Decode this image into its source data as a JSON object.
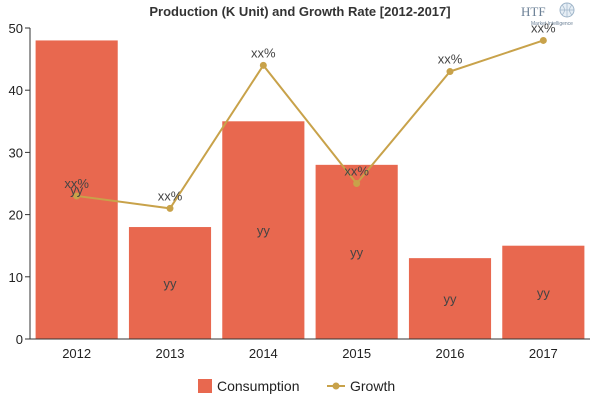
{
  "chart_data": {
    "type": "bar",
    "title": "Production (K Unit) and Growth Rate [2012-2017]",
    "categories": [
      "2012",
      "2013",
      "2014",
      "2015",
      "2016",
      "2017"
    ],
    "ylim": [
      0,
      50
    ],
    "yticks": [
      "0",
      "10",
      "20",
      "30",
      "40",
      "50"
    ],
    "grid": false,
    "legend_position": "bottom",
    "series": [
      {
        "name": "Consumption",
        "type": "bar",
        "color": "#e8684f",
        "values": [
          48,
          18,
          35,
          28,
          13,
          15
        ],
        "labels": [
          "yy",
          "yy",
          "yy",
          "yy",
          "yy",
          "yy"
        ]
      },
      {
        "name": "Growth",
        "type": "line",
        "color": "#c8a24a",
        "values": [
          23,
          21,
          44,
          25,
          43,
          48
        ],
        "labels": [
          "xx%",
          "xx%",
          "xx%",
          "xx%",
          "xx%",
          "xx%"
        ]
      }
    ]
  },
  "logo": {
    "text": "HTF",
    "subtext": "Market Intelligence"
  }
}
